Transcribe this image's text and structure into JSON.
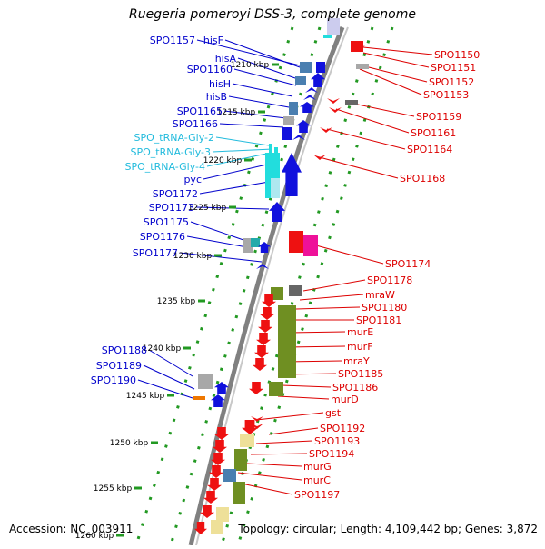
{
  "title": "Ruegeria pomeroyi DSS-3, complete genome",
  "footer": {
    "accession": "Accession: NC_003911",
    "topology": "Topology: circular; Length: 4,109,442 bp; Genes: 3,872"
  },
  "colors": {
    "left_label": "#0000cc",
    "trna_label": "#22bbdd",
    "right_label": "#dd0000",
    "backbone": "#808080",
    "tick": "#229922",
    "gene_blue": "#1111dd",
    "gene_steel": "#4a7fb0",
    "gene_gray": "#a8a8a8",
    "gene_cyan": "#22dddd",
    "gene_red": "#ee1111",
    "gene_magenta": "#ee1199",
    "gene_olive": "#6f8f22",
    "gene_khaki": "#eee099",
    "gene_orange": "#ee7700"
  },
  "scale_labels": [
    "1210 kbp",
    "1215 kbp",
    "1220 kbp",
    "1225 kbp",
    "1230 kbp",
    "1235 kbp",
    "1240 kbp",
    "1245 kbp",
    "1250 kbp",
    "1255 kbp",
    "1260 kbp"
  ],
  "left_labels": [
    {
      "text": "SPO1157",
      "kind": "gene"
    },
    {
      "text": "hisF",
      "kind": "gene"
    },
    {
      "text": "hisA",
      "kind": "gene"
    },
    {
      "text": "SPO1160",
      "kind": "gene"
    },
    {
      "text": "hisH",
      "kind": "gene"
    },
    {
      "text": "hisB",
      "kind": "gene"
    },
    {
      "text": "SPO1165",
      "kind": "gene"
    },
    {
      "text": "SPO1166",
      "kind": "gene"
    },
    {
      "text": "SPO_tRNA-Gly-2",
      "kind": "trna"
    },
    {
      "text": "SPO_tRNA-Gly-3",
      "kind": "trna"
    },
    {
      "text": "SPO_tRNA-Gly-4",
      "kind": "trna"
    },
    {
      "text": "pyc",
      "kind": "gene"
    },
    {
      "text": "SPO1172",
      "kind": "gene"
    },
    {
      "text": "SPO1173",
      "kind": "gene"
    },
    {
      "text": "SPO1175",
      "kind": "gene"
    },
    {
      "text": "SPO1176",
      "kind": "gene"
    },
    {
      "text": "SPO1177",
      "kind": "gene"
    },
    {
      "text": "SPO1188",
      "kind": "gene"
    },
    {
      "text": "SPO1189",
      "kind": "gene"
    },
    {
      "text": "SPO1190",
      "kind": "gene"
    }
  ],
  "right_labels": [
    "SPO1150",
    "SPO1151",
    "SPO1152",
    "SPO1153",
    "SPO1159",
    "SPO1161",
    "SPO1164",
    "SPO1168",
    "SPO1174",
    "SPO1178",
    "mraW",
    "SPO1180",
    "SPO1181",
    "murE",
    "murF",
    "mraY",
    "SPO1185",
    "SPO1186",
    "murD",
    "gst",
    "SPO1192",
    "SPO1193",
    "SPO1194",
    "murG",
    "murC",
    "SPO1197"
  ]
}
